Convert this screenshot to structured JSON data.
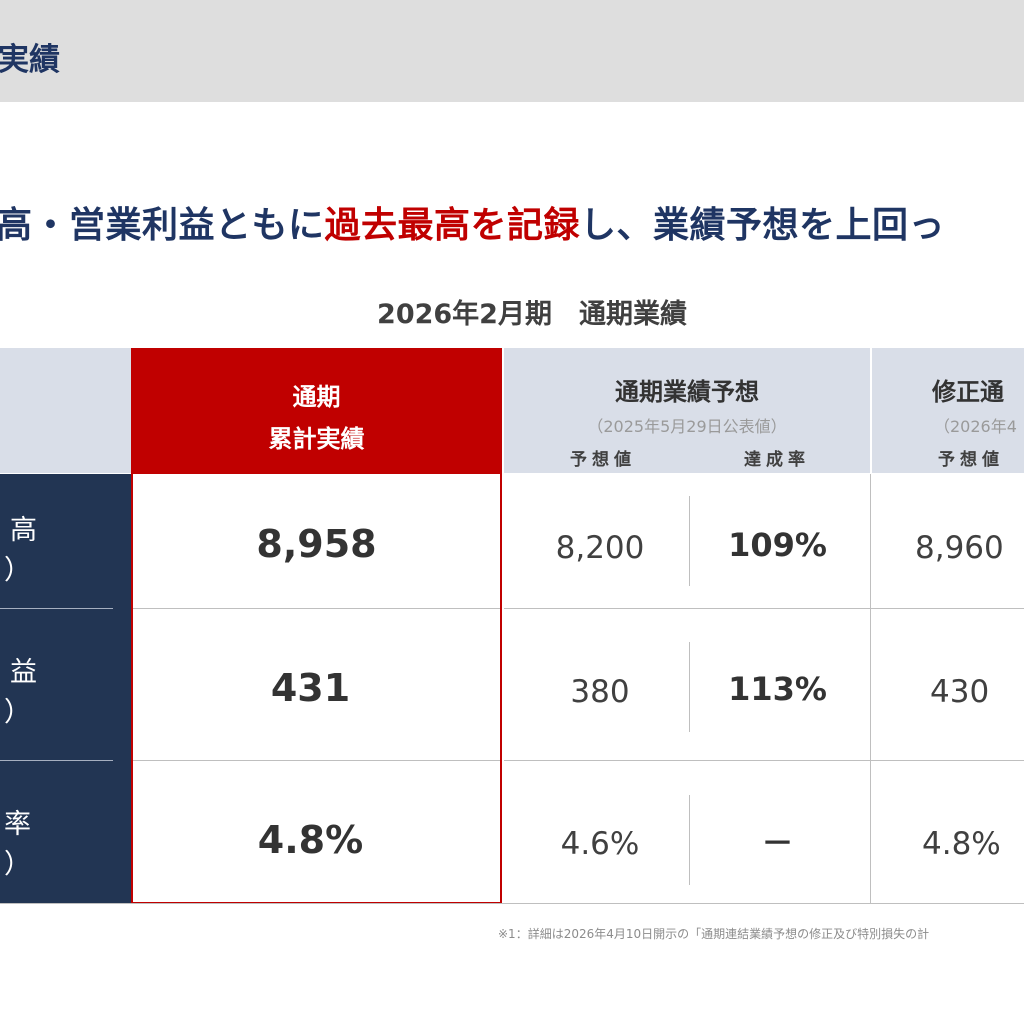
{
  "header": {
    "title": "実績"
  },
  "headline": {
    "part1": "高・営業利益ともに",
    "highlight": "過去最高を記録",
    "part2": "し、業績予想を上回っ"
  },
  "table": {
    "title": "2026年2月期　通期業績",
    "actual_header": {
      "line1": "通期",
      "line2": "累計実績"
    },
    "forecast_header": {
      "title": "通期業績予想",
      "subtitle": "（2025年5月29日公表値）",
      "col_forecast": "予想値",
      "col_rate": "達成率"
    },
    "revised_header": {
      "title": "修正通",
      "subtitle": "（2026年4",
      "col_forecast": "予想値"
    },
    "rows": [
      {
        "label_top": "高",
        "label_bottom": "）",
        "actual": "8,958",
        "forecast": "8,200",
        "rate": "109%",
        "revised": "8,960"
      },
      {
        "label_top": "益",
        "label_bottom": "）",
        "actual": "431",
        "forecast": "380",
        "rate": "113%",
        "revised": "430"
      },
      {
        "label_top": "率",
        "label_bottom": "）",
        "actual": "4.8%",
        "forecast": "4.6%",
        "rate": "－",
        "revised": "4.8%"
      }
    ]
  },
  "footnote": "※1：詳細は2026年4月10日開示の「通期連結業績予想の修正及び特別損失の計"
}
